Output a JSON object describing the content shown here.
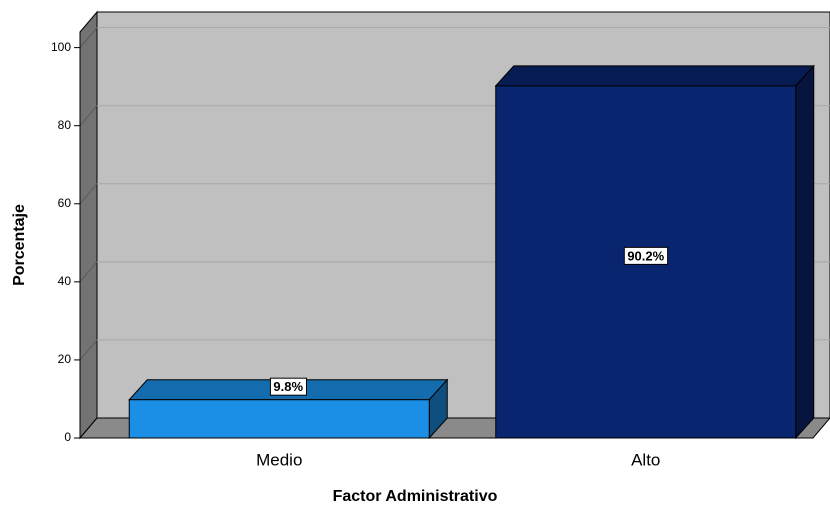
{
  "chart_data": {
    "type": "bar3d",
    "x_label": "Factor Administrativo",
    "y_label": "Porcentaje",
    "categories": [
      "Medio",
      "Alto"
    ],
    "values": [
      9.8,
      90.2
    ],
    "value_labels": [
      "9.8%",
      "90.2%"
    ],
    "colors": [
      "#1b8fe6",
      "#0a2570"
    ],
    "ylim": [
      0,
      104
    ],
    "yticks": [
      0,
      20,
      40,
      60,
      80,
      100
    ],
    "grid": true
  }
}
